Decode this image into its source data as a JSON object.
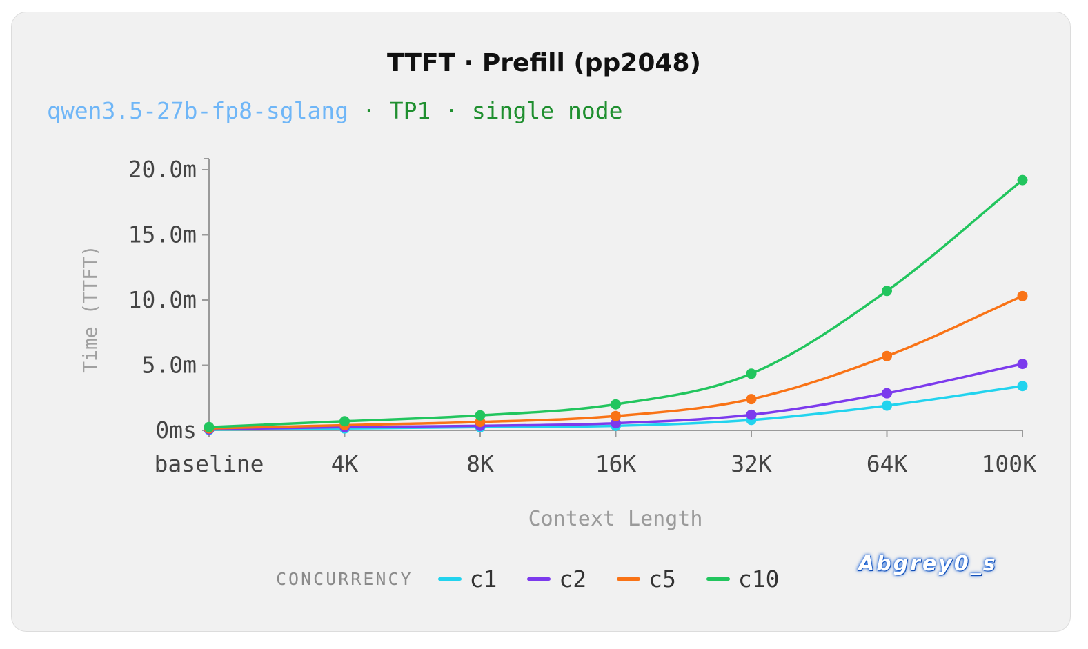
{
  "chart_data": {
    "type": "line",
    "title": "TTFT · Prefill (pp2048)",
    "subtitle": {
      "model": "qwen3.5-27b-fp8-sglang",
      "rest": " · TP1 · single node"
    },
    "xlabel": "Context Length",
    "ylabel": "Time (TTFT)",
    "categories": [
      "baseline",
      "4K",
      "8K",
      "16K",
      "32K",
      "64K",
      "100K"
    ],
    "yticks": [
      {
        "value": 0,
        "label": "0ms"
      },
      {
        "value": 5,
        "label": "5.0m"
      },
      {
        "value": 10,
        "label": "10.0m"
      },
      {
        "value": 15,
        "label": "15.0m"
      },
      {
        "value": 20,
        "label": "20.0m"
      }
    ],
    "ylim": [
      0,
      20
    ],
    "y_unit": "minutes",
    "grid": false,
    "legend_title": "CONCURRENCY",
    "legend_position": "bottom",
    "series": [
      {
        "name": "c1",
        "color": "#22d3ee",
        "values": [
          0.05,
          0.15,
          0.25,
          0.35,
          0.8,
          1.9,
          3.4
        ]
      },
      {
        "name": "c2",
        "color": "#7c3aed",
        "values": [
          0.08,
          0.25,
          0.35,
          0.55,
          1.2,
          2.85,
          5.1
        ]
      },
      {
        "name": "c5",
        "color": "#f97316",
        "values": [
          0.15,
          0.4,
          0.65,
          1.1,
          2.4,
          5.7,
          10.3
        ]
      },
      {
        "name": "c10",
        "color": "#22c55e",
        "values": [
          0.25,
          0.7,
          1.15,
          2.0,
          4.35,
          10.7,
          19.2
        ]
      }
    ]
  },
  "watermark": "Abgrey0_s"
}
